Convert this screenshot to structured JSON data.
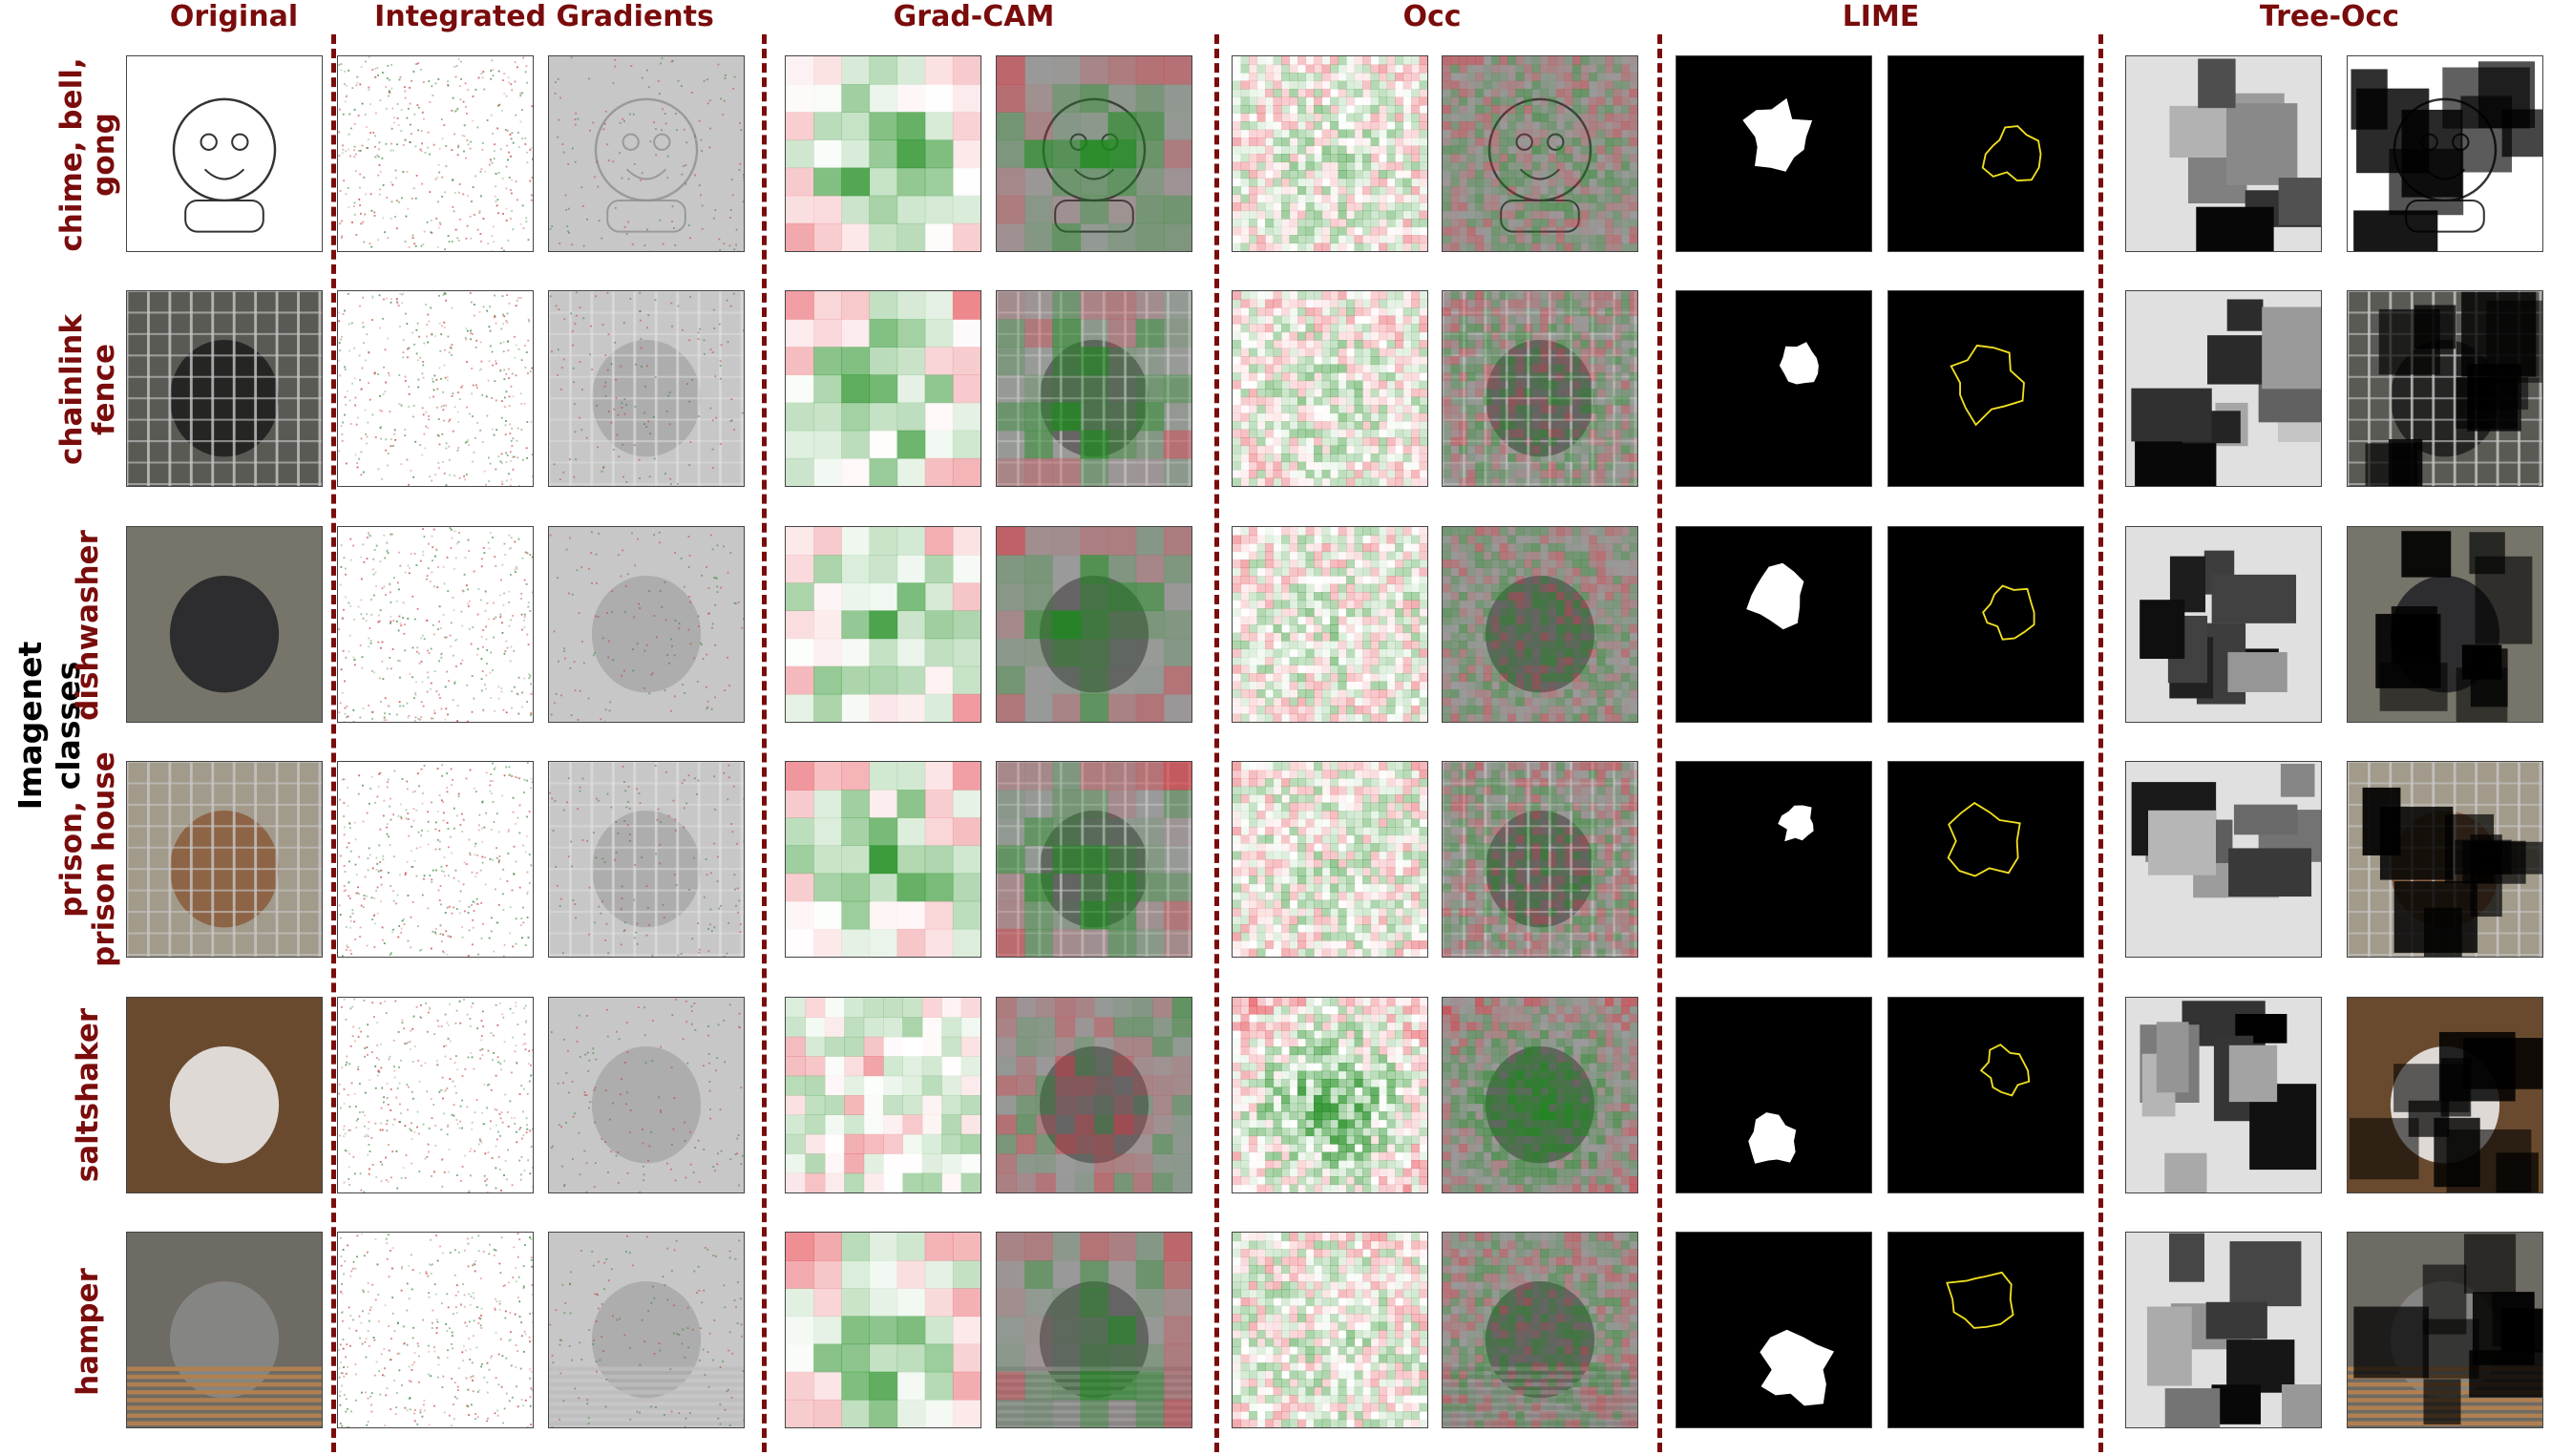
{
  "figure": {
    "side_title": "Imagenet classes",
    "columns": [
      "Original",
      "Integrated Gradients",
      "Grad-CAM",
      "Occ",
      "LIME",
      "Tree-Occ"
    ],
    "rows": [
      {
        "label": "chime, bell,\ngong"
      },
      {
        "label": "chainlink\nfence"
      },
      {
        "label": "dishwasher"
      },
      {
        "label": "prison,\nprison house"
      },
      {
        "label": "saltshaker"
      },
      {
        "label": "hamper"
      }
    ]
  },
  "colors": {
    "header": "#7a0c0c",
    "heat_positive": "#1a8a1a",
    "heat_negative": "#e0303a",
    "lime_contour": "#f0e020"
  }
}
